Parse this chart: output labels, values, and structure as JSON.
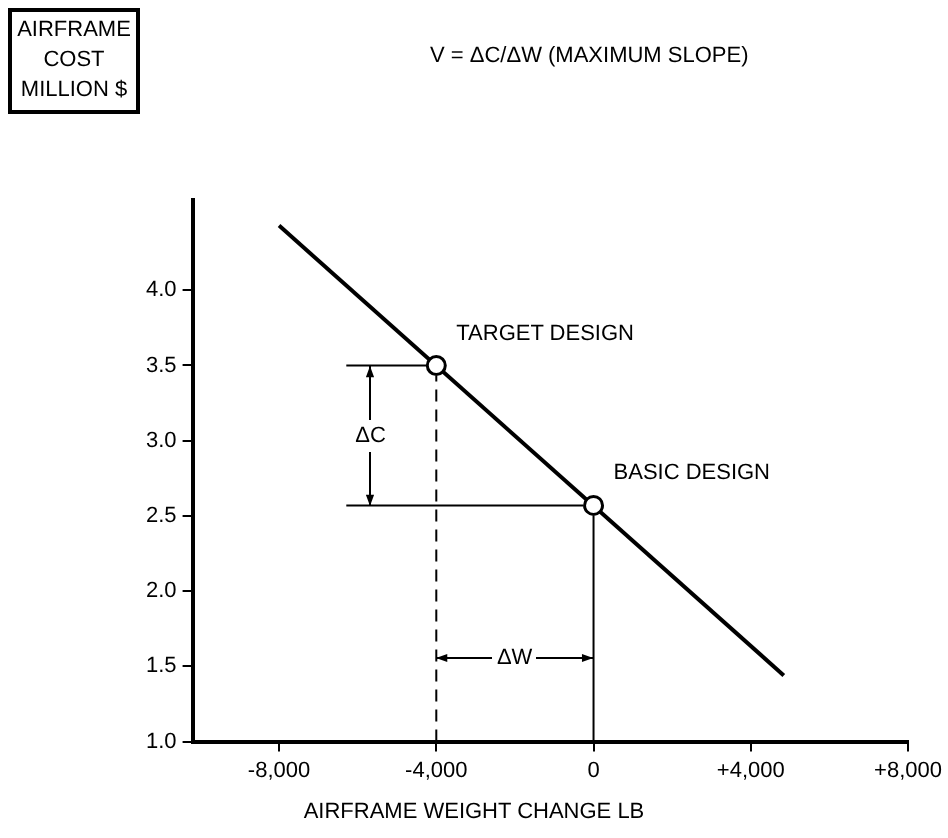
{
  "chart_data": {
    "type": "line",
    "ylabel": "AIRFRAME COST MILLION $",
    "xlabel": "AIRFRAME WEIGHT CHANGE LB",
    "annotations": [
      "V = ΔC/ΔW  (MAXIMUM SLOPE)",
      {
        "text": "TARGET DESIGN",
        "x": -4000,
        "y": 3.5
      },
      {
        "text": "BASIC DESIGN",
        "x": 0,
        "y": 2.57
      },
      "ΔC",
      "ΔW"
    ],
    "series": [
      {
        "color": "#000000",
        "x": [
          -8000,
          4840
        ],
        "values": [
          4.43,
          1.44
        ],
        "marker": "none"
      },
      {
        "type": "scatter",
        "color": "#000000",
        "x": [
          -4000,
          0
        ],
        "values": [
          3.5,
          2.57
        ],
        "marker": "circle"
      }
    ],
    "ref_lines": [
      {
        "axis": "x",
        "value": -4000,
        "line_style": "dashed"
      },
      {
        "axis": "x",
        "value": 0,
        "line_style": "solid"
      },
      {
        "axis": "y",
        "value": 3.5,
        "line_style": "solid"
      },
      {
        "axis": "y",
        "value": 2.57,
        "line_style": "solid"
      }
    ],
    "xlim": [
      -10200,
      8000
    ],
    "ylim": [
      1.0,
      4.6
    ],
    "xticks": [
      {
        "value": -8000,
        "label": "-8,000"
      },
      {
        "value": -4000,
        "label": "-4,000"
      },
      0,
      {
        "value": 4000,
        "label": "+4,000"
      },
      {
        "value": 8000,
        "label": "+8,000"
      }
    ],
    "yticks": [
      {
        "value": 1,
        "label": "1.0"
      },
      1.5,
      {
        "value": 2,
        "label": "2.0"
      },
      2.5,
      {
        "value": 3,
        "label": "3.0"
      },
      3.5,
      {
        "value": 4,
        "label": "4.0"
      }
    ],
    "grid": false,
    "legend": false
  }
}
